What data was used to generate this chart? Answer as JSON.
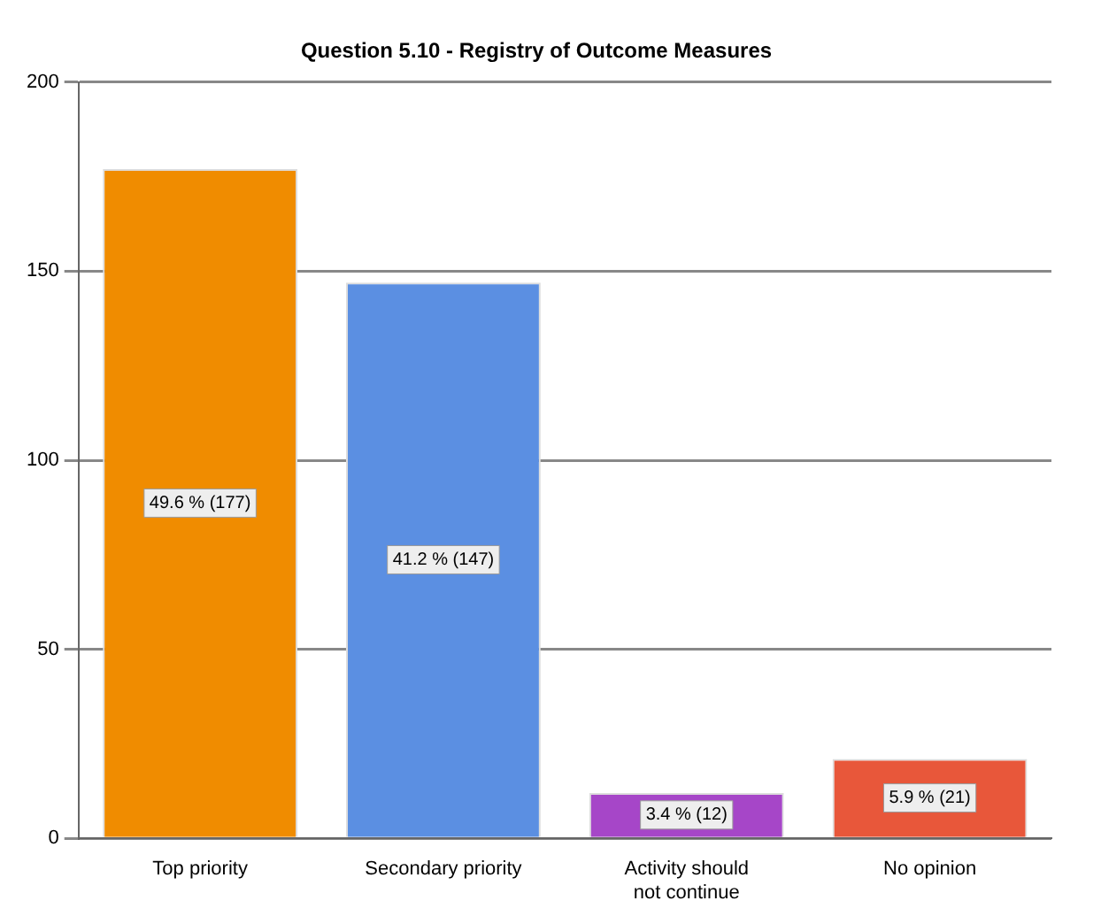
{
  "chart_data": {
    "type": "bar",
    "title": "Question 5.10 - Registry of Outcome Measures",
    "categories": [
      "Top priority",
      "Secondary priority",
      "Activity should not continue",
      "No opinion"
    ],
    "values": [
      177,
      147,
      12,
      21
    ],
    "colors": [
      "#f08c00",
      "#5b8fe2",
      "#a646c8",
      "#e8573a"
    ],
    "value_labels": [
      "49.6 % (177)",
      "41.2 % (147)",
      "3.4 % (12)",
      "5.9 % (21)"
    ],
    "ylim": [
      0,
      200
    ],
    "yticks": [
      0,
      50,
      100,
      150,
      200
    ],
    "grid": "y",
    "legend": false
  }
}
